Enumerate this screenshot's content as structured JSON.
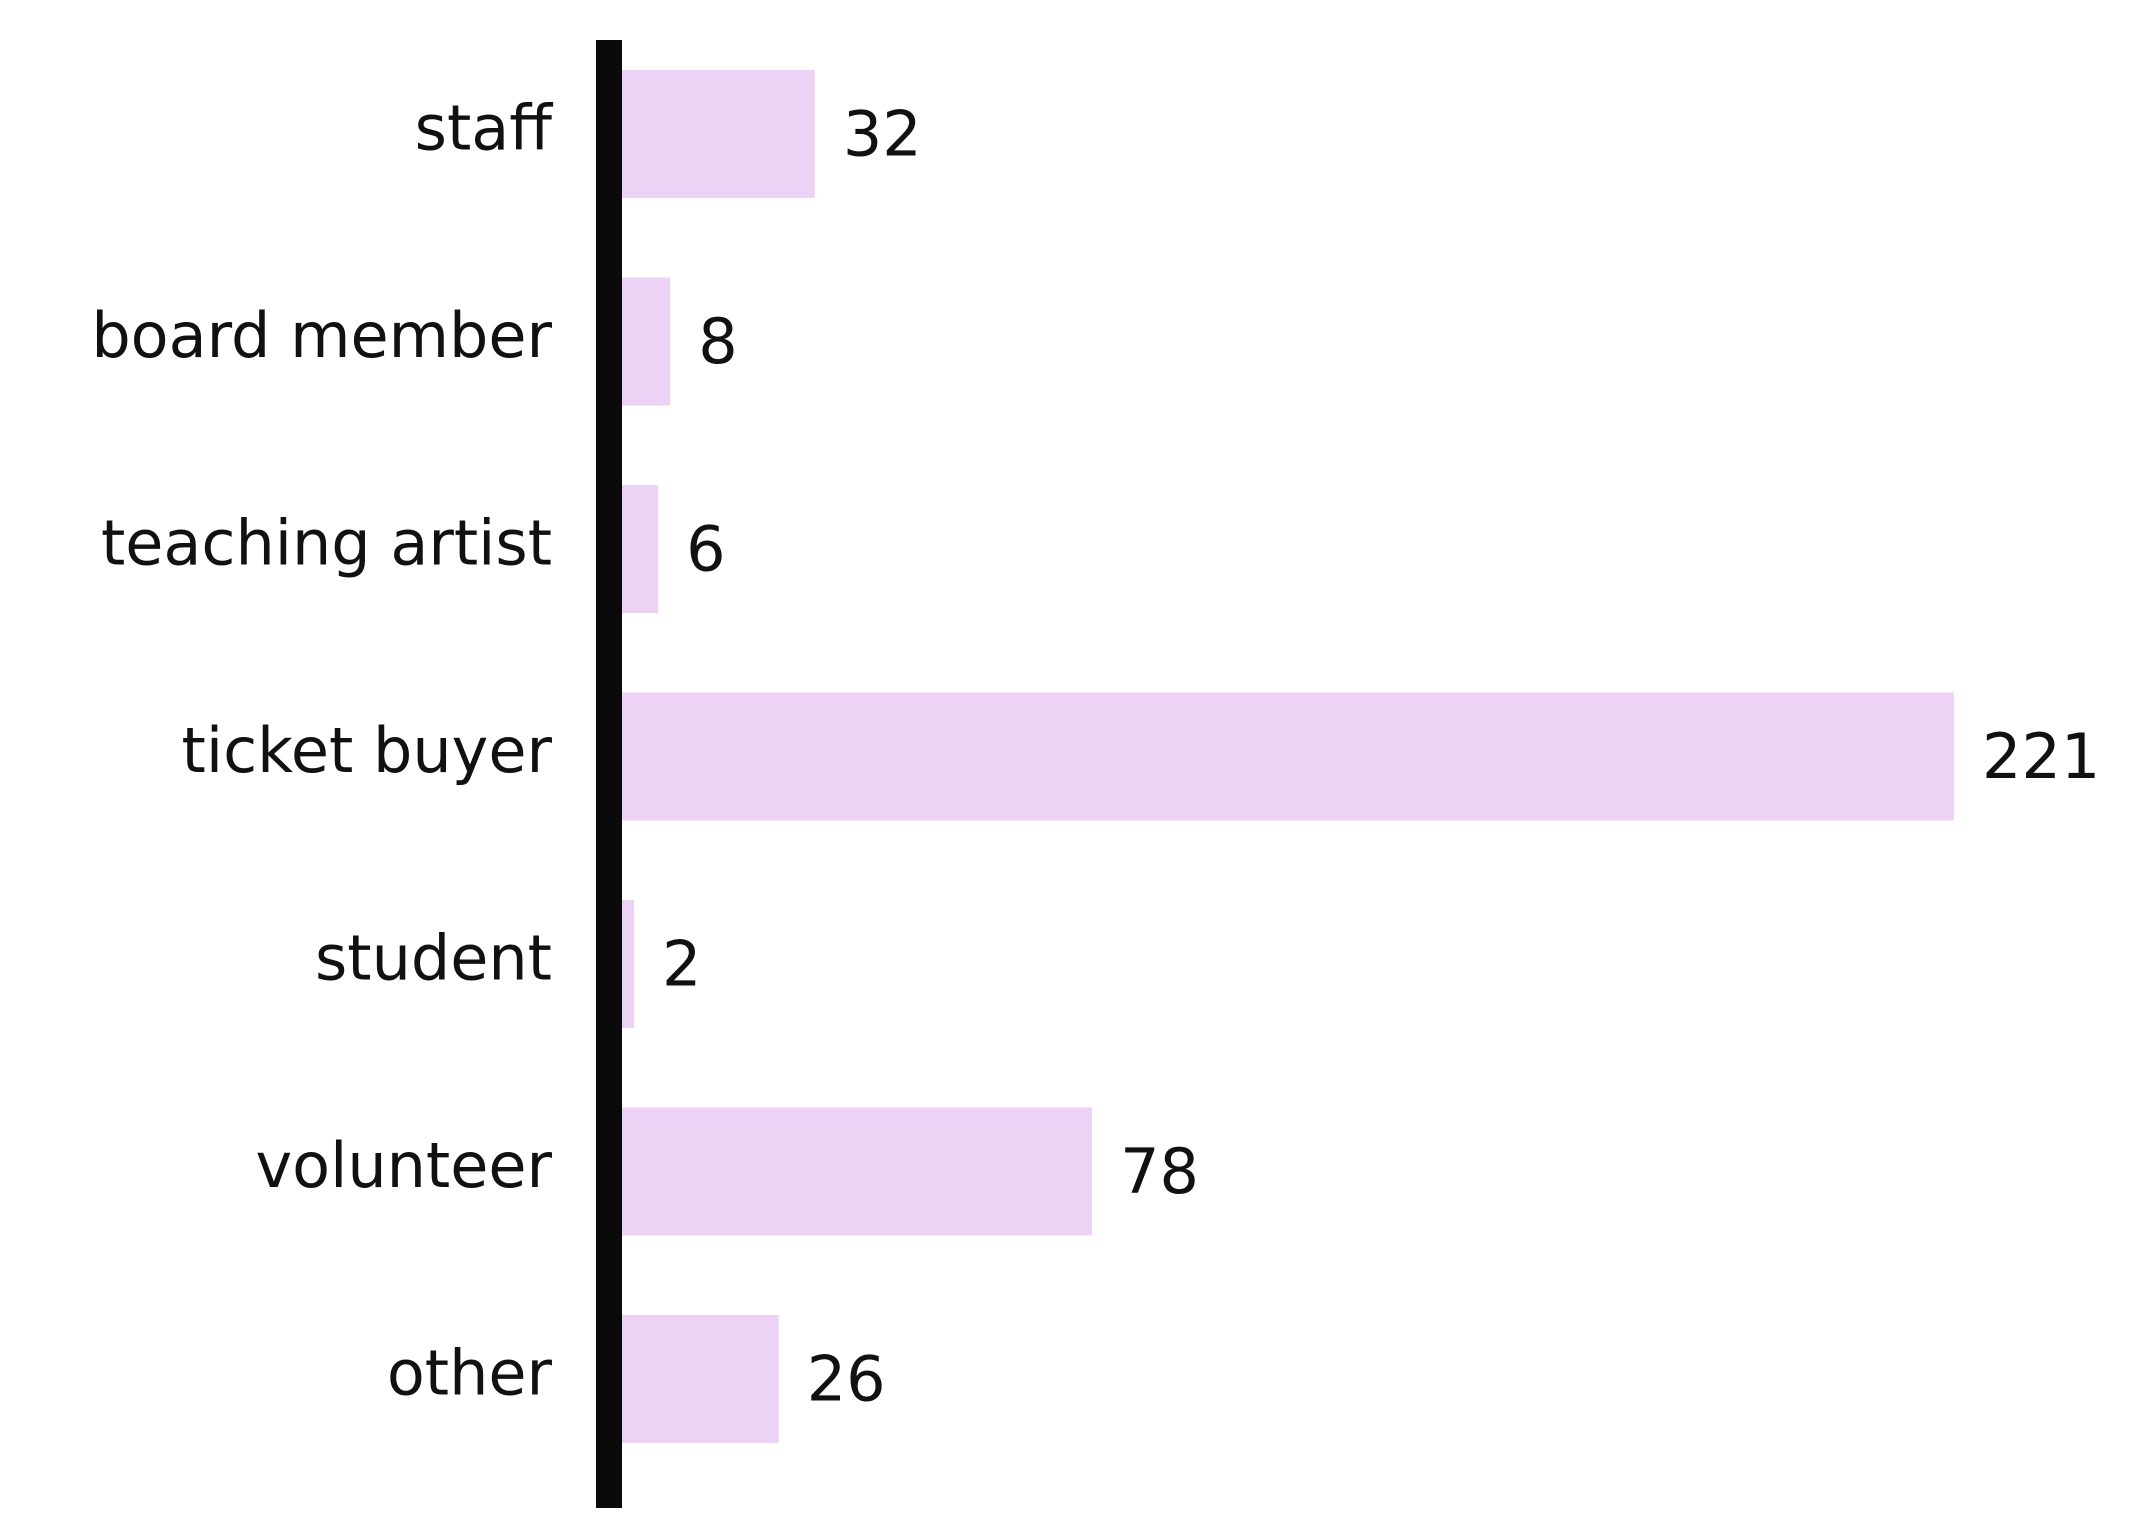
{
  "chart_data": {
    "type": "bar",
    "orientation": "horizontal",
    "categories": [
      "staff",
      "board member",
      "teaching artist",
      "ticket buyer",
      "student",
      "volunteer",
      "other"
    ],
    "values": [
      32,
      8,
      6,
      221,
      2,
      78,
      26
    ],
    "value_labels": [
      "32",
      "8",
      "6",
      "221",
      "2",
      "78",
      "26"
    ],
    "title": "",
    "xlabel": "",
    "ylabel": "",
    "xlim": [
      0,
      221
    ],
    "grid": false,
    "legend": "none",
    "colors": {
      "bar": "#ecd2f4",
      "axis": "#0a0a0a",
      "text": "#111111",
      "background": "#ffffff"
    }
  }
}
